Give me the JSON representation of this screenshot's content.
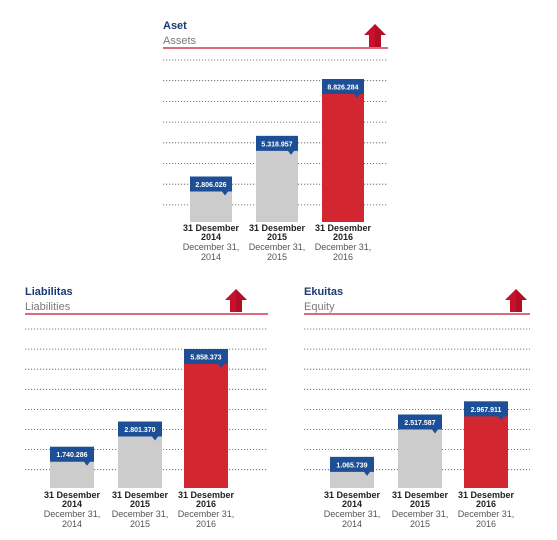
{
  "colors": {
    "title": "#1b3a73",
    "subtitle": "#7a7a7a",
    "rule": "#c8102e",
    "grid": "#555555",
    "bar_past": "#cccccc",
    "bar_latest": "#d22630",
    "label_box": "#1d4f96",
    "arrow": "#c8102e"
  },
  "icons": {
    "trend": "up-arrow-icon"
  },
  "chart_data": [
    {
      "type": "bar",
      "title": "Aset",
      "subtitle": "Assets",
      "categories": [
        {
          "id": "Indonesian",
          "line1": "31 Desember",
          "line2": "2014",
          "en1": "December 31,",
          "en2": "2014"
        },
        {
          "id": "Indonesian",
          "line1": "31 Desember",
          "line2": "2015",
          "en1": "December 31,",
          "en2": "2015"
        },
        {
          "id": "Indonesian",
          "line1": "31 Desember",
          "line2": "2016",
          "en1": "December 31,",
          "en2": "2016"
        }
      ],
      "values": [
        2806026,
        5318957,
        8826284
      ],
      "value_labels": [
        "2.806.026",
        "5.318.957",
        "8.826.284"
      ],
      "ylim": [
        0,
        10000000
      ],
      "grid": true,
      "highlight_last": true
    },
    {
      "type": "bar",
      "title": "Liabilitas",
      "subtitle": "Liabilities",
      "categories": [
        {
          "line1": "31 Desember",
          "line2": "2014",
          "en1": "December 31,",
          "en2": "2014"
        },
        {
          "line1": "31 Desember",
          "line2": "2015",
          "en1": "December 31,",
          "en2": "2015"
        },
        {
          "line1": "31 Desember",
          "line2": "2016",
          "en1": "December 31,",
          "en2": "2016"
        }
      ],
      "values": [
        1740286,
        2801370,
        5858373
      ],
      "value_labels": [
        "1.740.286",
        "2.801.370",
        "5.858.373"
      ],
      "ylim": [
        0,
        6700000
      ],
      "grid": true,
      "highlight_last": true
    },
    {
      "type": "bar",
      "title": "Ekuitas",
      "subtitle": "Equity",
      "categories": [
        {
          "line1": "31 Desember",
          "line2": "2014",
          "en1": "December 31,",
          "en2": "2014"
        },
        {
          "line1": "31 Desember",
          "line2": "2015",
          "en1": "December 31,",
          "en2": "2015"
        },
        {
          "line1": "31 Desember",
          "line2": "2016",
          "en1": "December 31,",
          "en2": "2016"
        }
      ],
      "values": [
        1065739,
        2517587,
        2967911
      ],
      "value_labels": [
        "1.065.739",
        "2.517.587",
        "2.967.911"
      ],
      "ylim": [
        0,
        5450000
      ],
      "grid": true,
      "highlight_last": true
    }
  ]
}
